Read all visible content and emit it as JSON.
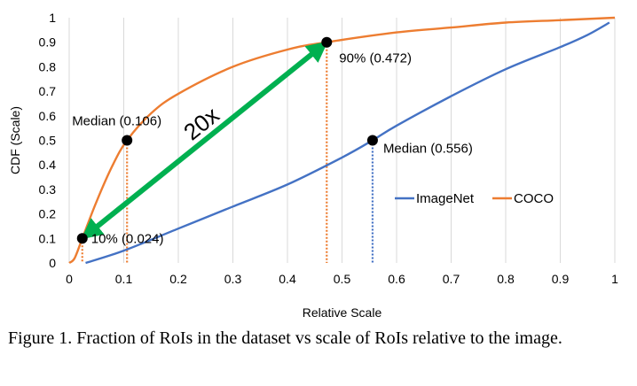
{
  "caption": "Figure 1. Fraction of RoIs in the dataset vs scale of RoIs relative to the image.",
  "chart_data": {
    "type": "line",
    "title": "",
    "xlabel": "Relative Scale",
    "ylabel": "CDF (Scale)",
    "xlim": [
      0,
      1
    ],
    "ylim": [
      0,
      1
    ],
    "xticks": [
      "0",
      "0.1",
      "0.2",
      "0.3",
      "0.4",
      "0.5",
      "0.6",
      "0.7",
      "0.8",
      "0.9",
      "1"
    ],
    "yticks": [
      "0",
      "0.1",
      "0.2",
      "0.3",
      "0.4",
      "0.5",
      "0.6",
      "0.7",
      "0.8",
      "0.9",
      "1"
    ],
    "grid": "vertical",
    "legend_position": "inside-right",
    "series": [
      {
        "name": "ImageNet",
        "color": "#4472C4",
        "x": [
          0.03,
          0.1,
          0.2,
          0.3,
          0.4,
          0.5,
          0.556,
          0.6,
          0.7,
          0.8,
          0.9,
          0.95,
          0.99
        ],
        "y": [
          0.0,
          0.05,
          0.14,
          0.23,
          0.32,
          0.43,
          0.5,
          0.56,
          0.68,
          0.79,
          0.88,
          0.93,
          0.98
        ]
      },
      {
        "name": "COCO",
        "color": "#ED7D31",
        "x": [
          0.0,
          0.01,
          0.024,
          0.05,
          0.08,
          0.106,
          0.15,
          0.2,
          0.3,
          0.4,
          0.472,
          0.6,
          0.7,
          0.8,
          0.9,
          1.0
        ],
        "y": [
          0.0,
          0.02,
          0.1,
          0.25,
          0.4,
          0.5,
          0.61,
          0.69,
          0.8,
          0.87,
          0.9,
          0.94,
          0.96,
          0.98,
          0.99,
          1.0
        ]
      }
    ],
    "markers": [
      {
        "label": "Median (0.106)",
        "x": 0.106,
        "y": 0.5,
        "color": "#ED7D31"
      },
      {
        "label": "10% (0.024)",
        "x": 0.024,
        "y": 0.1,
        "color": "#ED7D31"
      },
      {
        "label": "90% (0.472)",
        "x": 0.472,
        "y": 0.9,
        "color": "#ED7D31"
      },
      {
        "label": "Median (0.556)",
        "x": 0.556,
        "y": 0.5,
        "color": "#4472C4"
      }
    ],
    "ratio_arrow": {
      "label": "20x",
      "from": [
        0.024,
        0.1
      ],
      "to": [
        0.472,
        0.9
      ],
      "color": "#00B050"
    }
  }
}
